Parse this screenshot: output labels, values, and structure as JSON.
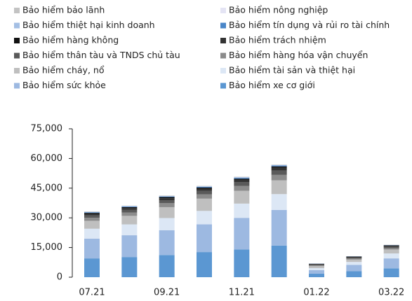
{
  "chart_data": {
    "type": "stacked_bar",
    "categories": [
      "07.21",
      null,
      "09.21",
      null,
      "11.21",
      null,
      "01.22",
      null,
      "03.22"
    ],
    "ylim": [
      0,
      75000
    ],
    "yticks": [
      0,
      {
        "value": 15000,
        "label": "15,000"
      },
      {
        "value": 30000,
        "label": "30,000"
      },
      {
        "value": 45000,
        "label": "45,000"
      },
      {
        "value": 60000,
        "label": "60,000"
      },
      {
        "value": 75000,
        "label": "75,000"
      }
    ],
    "series": [
      {
        "name": "Bảo hiểm bảo lãnh",
        "color": "#c3c3c3",
        "values": [
          200,
          200,
          200,
          200,
          200,
          200,
          30,
          40,
          50
        ]
      },
      {
        "name": "Bảo hiểm nông nghiệp",
        "color": "#e4e4f4",
        "values": [
          50,
          50,
          50,
          50,
          50,
          50,
          10,
          10,
          20
        ]
      },
      {
        "name": "Bảo hiểm thiệt hại kinh doanh",
        "color": "#a4bfe4",
        "values": [
          200,
          200,
          200,
          200,
          300,
          300,
          50,
          50,
          80
        ]
      },
      {
        "name": "Bảo hiểm tín dụng và rủi ro tài chính",
        "color": "#4a86c8",
        "values": [
          300,
          300,
          300,
          400,
          400,
          400,
          50,
          80,
          100
        ]
      },
      {
        "name": "Bảo hiểm hàng không",
        "color": "#111111",
        "values": [
          500,
          500,
          600,
          600,
          600,
          700,
          100,
          150,
          200
        ]
      },
      {
        "name": "Bảo hiểm trách nhiệm",
        "color": "#333333",
        "values": [
          800,
          900,
          1000,
          1100,
          1200,
          1400,
          300,
          400,
          500
        ]
      },
      {
        "name": "Bảo hiểm thân tàu và TNDS chủ tàu",
        "color": "#5a5a5a",
        "values": [
          1200,
          1300,
          1500,
          1700,
          1900,
          2200,
          400,
          500,
          700
        ]
      },
      {
        "name": "Bảo hiểm hàng hóa vận chuyển",
        "color": "#8c8c8c",
        "values": [
          1500,
          1700,
          2000,
          2200,
          2400,
          2700,
          400,
          500,
          700
        ]
      },
      {
        "name": "Bảo hiểm cháy, nổ",
        "color": "#bfbfbf",
        "values": [
          4000,
          4300,
          5500,
          6200,
          6500,
          7000,
          1000,
          1200,
          2000
        ]
      },
      {
        "name": "Bảo hiểm tài sản và thiệt hại",
        "color": "#dce7f5",
        "values": [
          5000,
          5500,
          6200,
          6800,
          7200,
          8000,
          1000,
          1500,
          2500
        ]
      },
      {
        "name": "Bảo hiểm sức khỏe",
        "color": "#9db9e1",
        "values": [
          10000,
          11000,
          12500,
          14000,
          16000,
          18000,
          1800,
          3200,
          5000
        ]
      },
      {
        "name": "Bảo hiểm xe cơ giới",
        "color": "#5b97d2",
        "values": [
          9500,
          10200,
          11200,
          12700,
          14000,
          16000,
          1800,
          3000,
          4500
        ]
      }
    ]
  }
}
